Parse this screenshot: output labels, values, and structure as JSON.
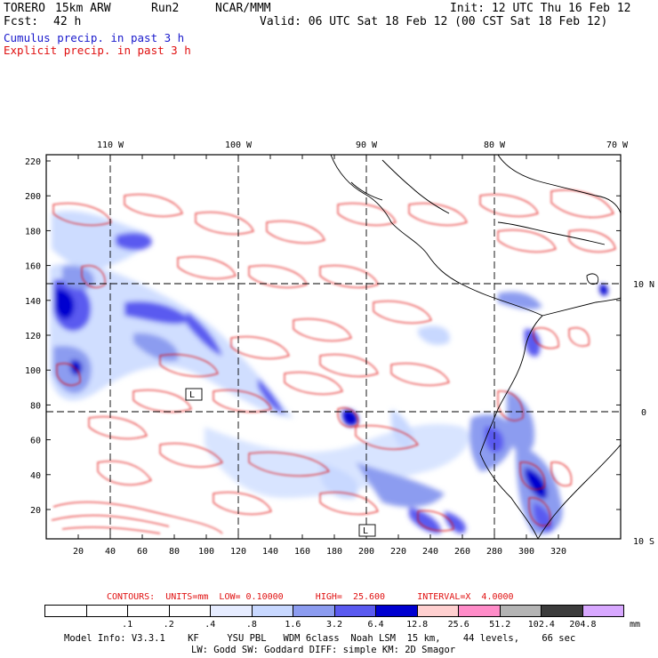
{
  "header": {
    "model": "TORERO",
    "grid": "15km ARW",
    "run": "Run2",
    "org": "NCAR/MMM",
    "init": "Init: 12 UTC Thu 16 Feb 12",
    "fcst_label": "Fcst:",
    "fcst_value": "42 h",
    "valid": "Valid: 06 UTC Sat 18 Feb 12 (00 CST Sat 18 Feb 12)",
    "field1": "Cumulus precip. in past 3 h",
    "field2": "Explicit precip. in past 3 h"
  },
  "map": {
    "lon_labels": [
      "110 W",
      "100 W",
      "90 W",
      "80 W",
      "70 W"
    ],
    "lat_labels": [
      "10 N",
      "0",
      "10 S"
    ],
    "x_ticks": [
      "20",
      "40",
      "60",
      "80",
      "100",
      "120",
      "140",
      "160",
      "180",
      "200",
      "220",
      "240",
      "260",
      "280",
      "300",
      "320"
    ],
    "y_ticks": [
      "220",
      "200",
      "180",
      "160",
      "140",
      "120",
      "100",
      "80",
      "60",
      "40",
      "20"
    ],
    "labels": [
      "L",
      "L"
    ],
    "colors": {
      "contour": "#e01010",
      "coast": "#000000",
      "light_blue": "#c8d8ff",
      "mid_blue": "#8c9cf0",
      "dark_blue": "#3c3cf0",
      "deep_blue": "#0000d0"
    }
  },
  "contours_line": "CONTOURS:  UNITS=mm  LOW= 0.10000      HIGH=  25.600      INTERVAL=X  4.0000",
  "legend": {
    "values": [
      ".1",
      ".2",
      ".4",
      ".8",
      "1.6",
      "3.2",
      "6.4",
      "12.8",
      "25.6",
      "51.2",
      "102.4",
      "204.8"
    ],
    "unit": "mm",
    "colors": [
      "#ffffff",
      "#ffffff",
      "#ffffff",
      "#ffffff",
      "#e6ecff",
      "#c8d8ff",
      "#8c9cf0",
      "#5a5af0",
      "#0000d0",
      "#ffd0d0",
      "#ff8cc8",
      "#b4b4b4",
      "#3c3c3c",
      "#d8a8ff"
    ]
  },
  "info": {
    "line1": "Model Info: V3.3.1    KF     YSU PBL   WDM 6class  Noah LSM  15 km,    44 levels,    66 sec",
    "line2": "LW: Godd SW: Goddard DIFF: simple KM: 2D Smagor"
  }
}
